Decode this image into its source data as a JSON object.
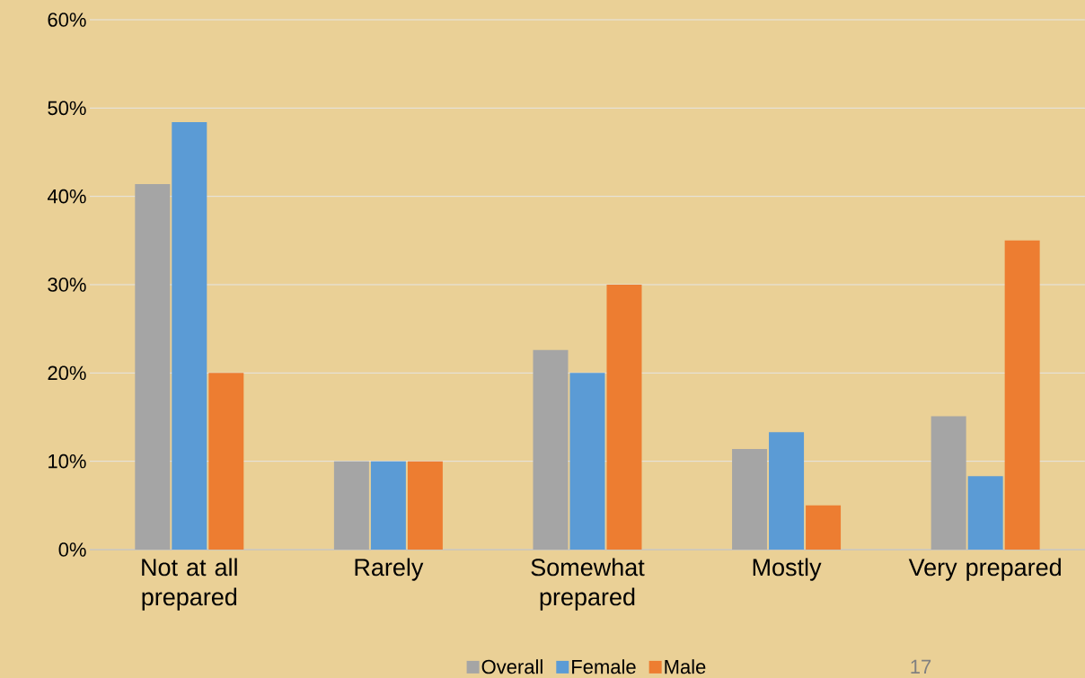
{
  "chart_data": {
    "type": "bar",
    "categories": [
      "Not at all prepared",
      "Rarely",
      "Somewhat prepared",
      "Mostly",
      "Very prepared"
    ],
    "series": [
      {
        "name": "Overall",
        "color": "#a5a5a5",
        "values": [
          41.4,
          10,
          22.6,
          11.4,
          15.1
        ]
      },
      {
        "name": "Female",
        "color": "#5b9bd5",
        "values": [
          48.4,
          10,
          20,
          13.3,
          8.3
        ]
      },
      {
        "name": "Male",
        "color": "#ed7d31",
        "values": [
          20,
          10,
          30,
          5,
          35
        ]
      }
    ],
    "ylim": [
      0,
      60
    ],
    "yticks": [
      {
        "value": 0,
        "label": "0%"
      },
      {
        "value": 10,
        "label": "10%"
      },
      {
        "value": 20,
        "label": "20%"
      },
      {
        "value": 30,
        "label": "30%"
      },
      {
        "value": 40,
        "label": "40%"
      },
      {
        "value": 50,
        "label": "50%"
      },
      {
        "value": 60,
        "label": "60%"
      }
    ],
    "grid": "y",
    "legend": "bottom",
    "annotations": [
      "17"
    ]
  }
}
